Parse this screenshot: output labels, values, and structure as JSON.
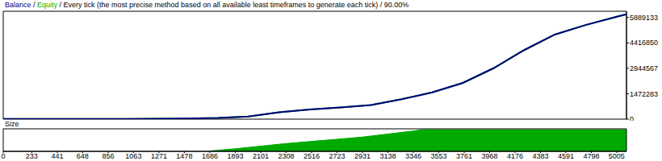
{
  "chart_data": [
    {
      "type": "line",
      "title": "Balance / Equity / Every tick (the most precise method based on all available least timeframes to generate each tick) / 90.00%",
      "x": [
        0,
        250,
        500,
        750,
        1000,
        1250,
        1500,
        1750,
        2000,
        2250,
        2500,
        2750,
        3000,
        3250,
        3500,
        3750,
        4000,
        4250,
        4500,
        4750,
        5000,
        5085
      ],
      "series": [
        {
          "name": "Balance",
          "color": "#000080",
          "values": [
            10000,
            10500,
            11500,
            13000,
            15000,
            20000,
            35000,
            70000,
            150000,
            400000,
            560000,
            680000,
            820000,
            1150000,
            1550000,
            2100000,
            2950000,
            4000000,
            4900000,
            5450000,
            5920000,
            6080000
          ]
        },
        {
          "name": "Equity",
          "color": "#00b000",
          "values": [
            10000,
            10500,
            11500,
            13000,
            15000,
            20000,
            35000,
            70000,
            150000,
            400000,
            560000,
            680000,
            820000,
            1150000,
            1550000,
            2100000,
            2950000,
            4000000,
            4900000,
            5450000,
            5920000,
            6080000
          ]
        }
      ],
      "xlim": [
        0,
        5085
      ],
      "ylim": [
        0,
        6250000
      ],
      "yticks": [
        0,
        1472283,
        2944567,
        4416850,
        5889133
      ],
      "grid": false,
      "tick_labels": "y"
    },
    {
      "type": "area",
      "title": "Size",
      "x": [
        1690,
        1893,
        2101,
        2308,
        2516,
        2723,
        2931,
        3138,
        3346,
        3420,
        5085
      ],
      "series": [
        {
          "name": "Size",
          "color": "#00aa00",
          "values": [
            1,
            6,
            12,
            18,
            23,
            28,
            33,
            40,
            47,
            50,
            50
          ]
        }
      ],
      "xlim": [
        0,
        5085
      ],
      "ylim": [
        0,
        52
      ],
      "xticks": [
        0,
        233,
        441,
        648,
        856,
        1063,
        1271,
        1478,
        1686,
        1893,
        2101,
        2308,
        2516,
        2723,
        2931,
        3138,
        3346,
        3553,
        3761,
        3968,
        4176,
        4383,
        4591,
        4798,
        5005
      ],
      "grid": false,
      "tick_labels": "x"
    }
  ]
}
